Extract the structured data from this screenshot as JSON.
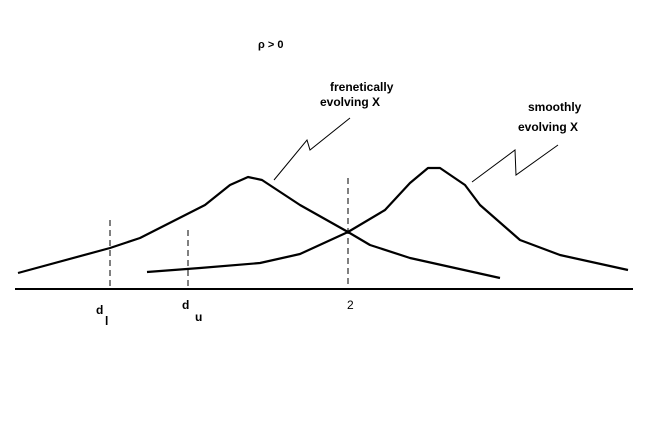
{
  "condition": "ρ > 0",
  "curve_labels": [
    {
      "line1": "frenetically",
      "line2": "evolving X"
    },
    {
      "line1": "smoothly",
      "line2": "evolving X"
    }
  ],
  "axis_labels": [
    {
      "base": "d",
      "sub": "l"
    },
    {
      "base": "d",
      "sub": "u"
    },
    {
      "base": "2"
    }
  ]
}
